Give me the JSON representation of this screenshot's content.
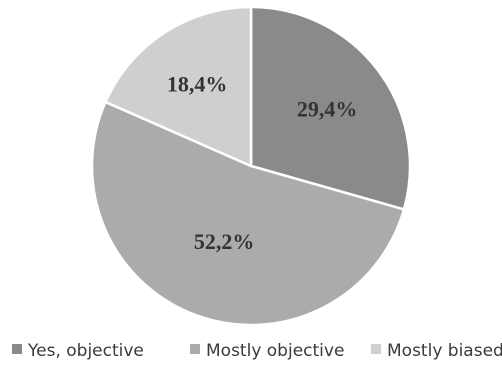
{
  "chart_data": {
    "type": "pie",
    "categories": [
      "Yes, objective",
      "Mostly objective",
      "Mostly biased"
    ],
    "values": [
      29.4,
      52.2,
      18.4
    ],
    "labels": [
      "29,4%",
      "52,2%",
      "18,4%"
    ],
    "colors": [
      "#8a8a8a",
      "#ababab",
      "#cfcfcf"
    ],
    "start": "12 o'clock",
    "direction": "clockwise",
    "legend_position": "bottom",
    "title": ""
  }
}
